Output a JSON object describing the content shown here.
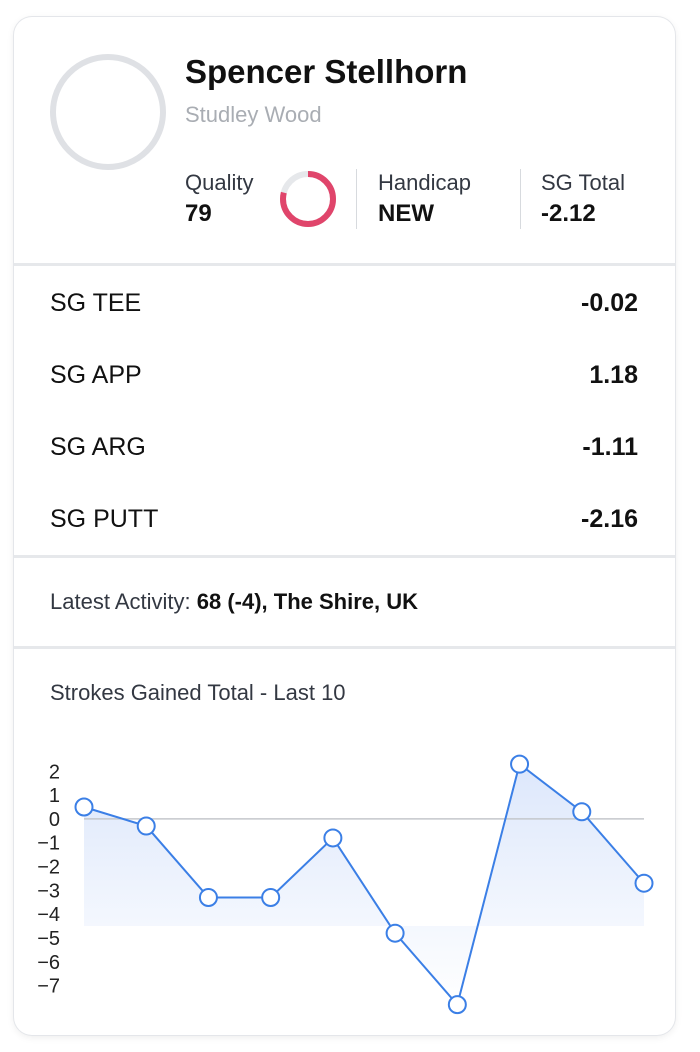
{
  "player": {
    "name": "Spencer Stellhorn",
    "club": "Studley Wood"
  },
  "stats": {
    "quality_label": "Quality",
    "quality_value": "79",
    "quality_fraction": 0.79,
    "handicap_label": "Handicap",
    "handicap_value": "NEW",
    "sg_total_label": "SG Total",
    "sg_total_value": "-2.12"
  },
  "colors": {
    "ring": "#e0456b",
    "ring_track": "#e6e8eb",
    "line": "#3b7fe6",
    "area": "#dbe6fb"
  },
  "sg_rows": [
    {
      "label": "SG TEE",
      "value": "-0.02"
    },
    {
      "label": "SG APP",
      "value": "1.18"
    },
    {
      "label": "SG ARG",
      "value": "-1.11"
    },
    {
      "label": "SG PUTT",
      "value": "-2.16"
    }
  ],
  "activity": {
    "label": "Latest Activity:",
    "value": "68 (-4), The Shire, UK"
  },
  "chart": {
    "title": "Strokes Gained Total - Last 10"
  },
  "chart_data": {
    "type": "line",
    "title": "Strokes Gained Total - Last 10",
    "x": [
      1,
      2,
      3,
      4,
      5,
      6,
      7,
      8,
      9,
      10
    ],
    "values": [
      0.5,
      -0.3,
      -3.3,
      -3.3,
      -0.8,
      -4.8,
      -7.8,
      2.3,
      0.3,
      -2.7
    ],
    "yticks": [
      "2",
      "1",
      "0",
      "−1",
      "−2",
      "−3",
      "−4",
      "−5",
      "−6",
      "−7"
    ],
    "ytick_values": [
      2,
      1,
      0,
      -1,
      -2,
      -3,
      -4,
      -5,
      -6,
      -7
    ],
    "ylim": [
      -7.9,
      2.6
    ],
    "zero_line": true,
    "grid": false,
    "legend": "none"
  }
}
